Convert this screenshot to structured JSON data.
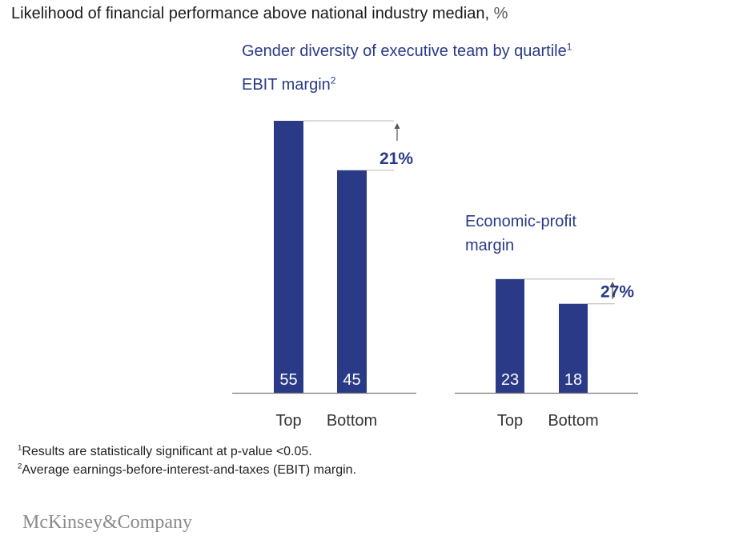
{
  "title": {
    "text": "Likelihood of financial performance above national industry median,",
    "unit": "%"
  },
  "chart_data": [
    {
      "type": "bar",
      "title": "EBIT margin",
      "title_sup": "2",
      "categories": [
        "Top",
        "Bottom"
      ],
      "values": [
        55,
        45
      ],
      "difference_label": "21%",
      "color": "#2a3a86"
    },
    {
      "type": "bar",
      "title": "Economic-profit margin",
      "title_lines": [
        "Economic-profit",
        "margin"
      ],
      "categories": [
        "Top",
        "Bottom"
      ],
      "values": [
        23,
        18
      ],
      "difference_label": "27%",
      "color": "#2a3a86"
    }
  ],
  "subtitle": {
    "text": "Gender diversity of executive team by quartile",
    "sup": "1"
  },
  "footnotes": [
    {
      "sup": "1",
      "text": "Results are statistically significant at p-value <0.05."
    },
    {
      "sup": "2",
      "text": "Average earnings-before-interest-and-taxes (EBIT) margin."
    }
  ],
  "brand": "McKinsey&Company",
  "colors": {
    "bar": "#2a3a86",
    "accent_text": "#2a3a86",
    "reference_line": "#b5b5b5",
    "axis": "#777777"
  }
}
